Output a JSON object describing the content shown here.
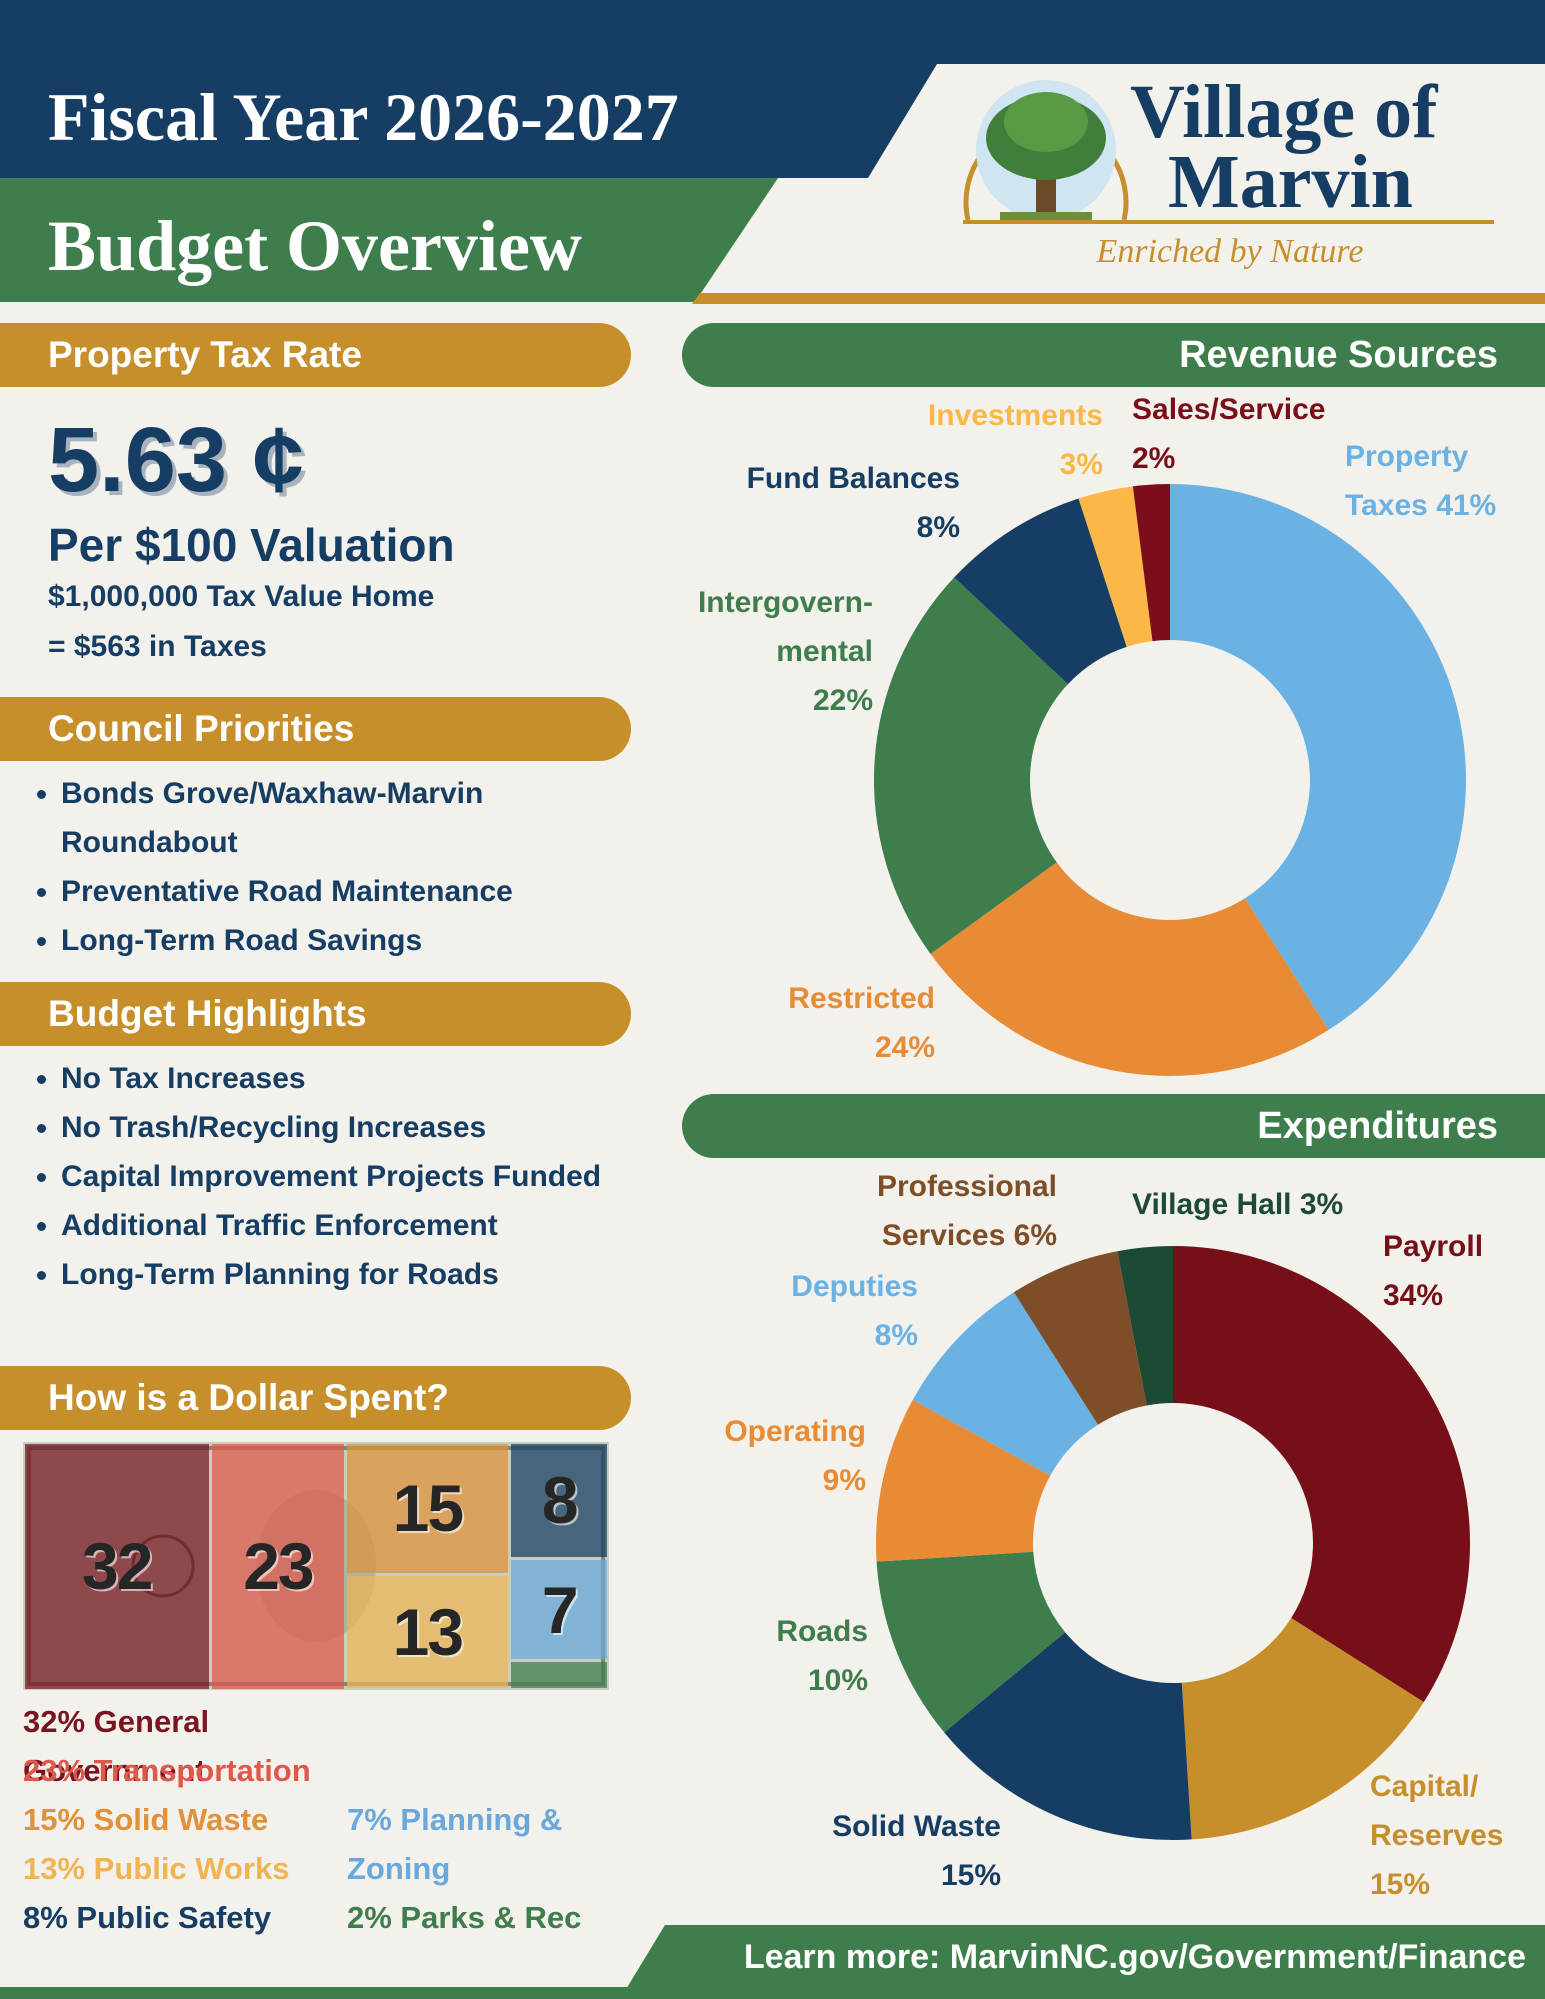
{
  "header": {
    "title": "Fiscal Year 2026-2027",
    "subtitle": "Budget Overview",
    "logo_line1": "Village of",
    "logo_line2": "Marvin",
    "tagline": "Enriched by Nature"
  },
  "property_tax": {
    "heading": "Property Tax Rate",
    "rate": "5.63 ¢",
    "basis": "Per $100 Valuation",
    "example_line1": "$1,000,000 Tax Value Home",
    "example_line2": "= $563 in Taxes"
  },
  "council_priorities": {
    "heading": "Council Priorities",
    "items": [
      "Bonds Grove/Waxhaw-Marvin Roundabout",
      "Preventative Road Maintenance",
      "Long-Term Road Savings"
    ]
  },
  "budget_highlights": {
    "heading": "Budget Highlights",
    "items": [
      "No Tax Increases",
      "No Trash/Recycling Increases",
      "Capital Improvement Projects Funded",
      "Additional Traffic Enforcement",
      "Long-Term Planning for Roads"
    ]
  },
  "dollar_spent": {
    "heading": "How is a Dollar Spent?",
    "segments": [
      {
        "value": 32,
        "legend": "32% General Government",
        "color": "#7a1420"
      },
      {
        "value": 23,
        "legend": "23% Transportation",
        "color": "#e0584a"
      },
      {
        "value": 15,
        "legend": "15% Solid Waste",
        "color": "#e0913a"
      },
      {
        "value": 13,
        "legend": "13% Public Works",
        "color": "#f0b455"
      },
      {
        "value": 8,
        "legend": "8% Public Safety",
        "color": "#163d63"
      },
      {
        "value": 7,
        "legend": "7% Planning & Zoning",
        "color": "#6aa8dc"
      },
      {
        "value": 2,
        "legend": "2% Parks & Rec",
        "color": "#3e7d4c"
      }
    ]
  },
  "chart_data": [
    {
      "type": "donut",
      "title": "Revenue Sources",
      "categories": [
        "Property Taxes",
        "Restricted",
        "Intergovern-mental",
        "Fund Balances",
        "Investments",
        "Sales/Service"
      ],
      "values": [
        41,
        24,
        22,
        8,
        3,
        2
      ],
      "value_labels": [
        "41%",
        "24%",
        "22%",
        "8%",
        "3%",
        "2%"
      ],
      "colors": [
        "#6ab2e4",
        "#e88b35",
        "#3e7d4c",
        "#163d63",
        "#fbb847",
        "#7a0e1a"
      ]
    },
    {
      "type": "donut",
      "title": "Expenditures",
      "categories": [
        "Payroll",
        "Capital/ Reserves",
        "Solid Waste",
        "Roads",
        "Operating",
        "Deputies",
        "Professional Services",
        "Village Hall"
      ],
      "values": [
        34,
        15,
        15,
        10,
        9,
        8,
        6,
        3
      ],
      "value_labels": [
        "34%",
        "15%",
        "15%",
        "10%",
        "9%",
        "8%",
        "6%",
        "3%"
      ],
      "colors": [
        "#760f18",
        "#c78f2c",
        "#163d63",
        "#3e7d4c",
        "#e88b35",
        "#6ab2e4",
        "#7d4e27",
        "#1c4a35"
      ]
    }
  ],
  "footer": {
    "text": "Learn more: MarvinNC.gov/Government/Finance"
  }
}
